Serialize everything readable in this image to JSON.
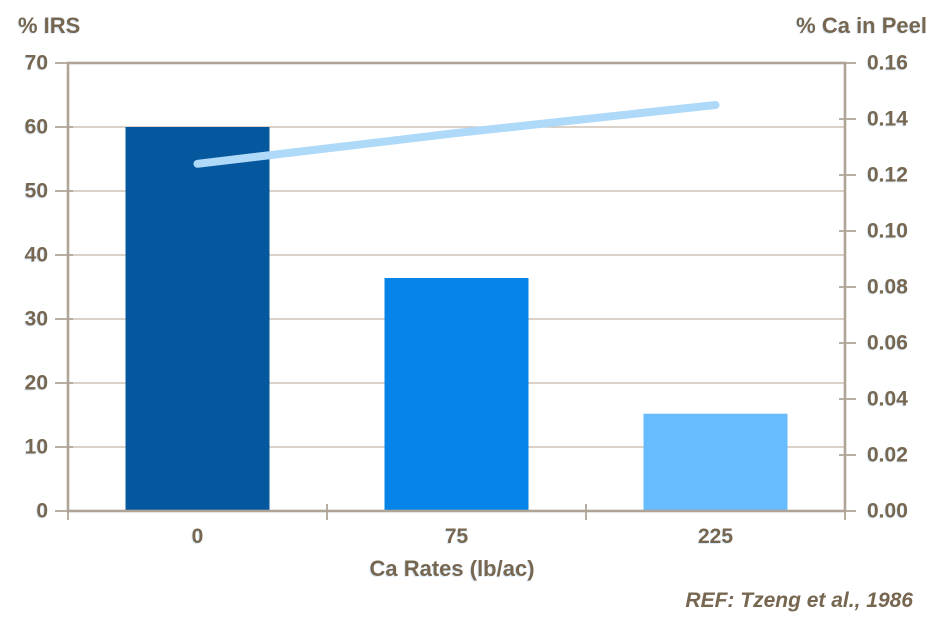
{
  "chart_data": {
    "type": "combo",
    "categories": [
      "0",
      "75",
      "225"
    ],
    "series": [
      {
        "name": "% IRS",
        "type": "bar",
        "axis": "left",
        "values": [
          60,
          36.4,
          15.2
        ],
        "bar_colors": [
          "#05589E",
          "#0484E8",
          "#66BCFE"
        ]
      },
      {
        "name": "% Ca in Peel",
        "type": "line",
        "axis": "right",
        "values": [
          0.124,
          0.135,
          0.145
        ],
        "color": "#AFD9F9"
      }
    ],
    "left_axis": {
      "title": "% IRS",
      "min": 0,
      "max": 70,
      "step": 10,
      "tick_labels": [
        "0",
        "10",
        "20",
        "30",
        "40",
        "50",
        "60",
        "70"
      ]
    },
    "right_axis": {
      "title": "% Ca in Peel",
      "min": 0,
      "max": 0.16,
      "step": 0.02,
      "tick_labels": [
        "0.00",
        "0.02",
        "0.04",
        "0.06",
        "0.08",
        "0.10",
        "0.12",
        "0.14",
        "0.16"
      ]
    },
    "x_axis": {
      "title": "Ca Rates (lb/ac)"
    },
    "annotation": "REF: Tzeng et al., 1986",
    "legend": "none",
    "grid": "horizontal",
    "colors": {
      "grid": "#CDC3B6",
      "frame": "#AFA496",
      "text": "#776750",
      "background": "#FFFFFF"
    }
  }
}
